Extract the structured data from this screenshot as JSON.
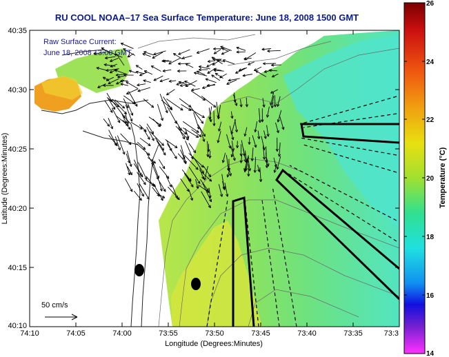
{
  "chart_data": {
    "type": "heatmap",
    "title": "RU COOL  NOAA–17  Sea Surface Temperature:  June 18, 2008 1500 GMT",
    "xlabel": "Longitude (Degrees:Minutes)",
    "ylabel": "Latitude (Degrees:Minutes)",
    "x_ticks": [
      "74:10",
      "74:05",
      "74:00",
      "73:55",
      "73:50",
      "73:45",
      "73:40",
      "73:35",
      "73:3"
    ],
    "y_ticks": [
      "40:35",
      "40:30",
      "40:25",
      "40:20",
      "40:15",
      "40:10"
    ],
    "legend_entries": [
      "Raw Surface Current:",
      "June 18, 2008 13:00 GMT"
    ],
    "scale_label": "50 cm/s",
    "colorbar": {
      "label": "Temperature (°C)",
      "range": [
        14,
        26
      ],
      "ticks": [
        "26",
        "24",
        "22",
        "20",
        "18",
        "16",
        "14"
      ]
    },
    "colors": {
      "title": "#0a1a8c",
      "land": "#ffffff",
      "water_main": "#7ee06a",
      "water_warm": "#e8e63a",
      "water_cool": "#4fe6c8",
      "hot_spot": "#f0a020"
    }
  }
}
